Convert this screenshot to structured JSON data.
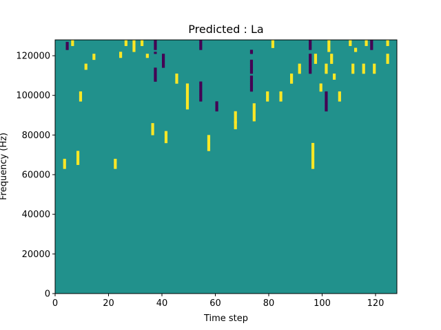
{
  "chart_data": {
    "type": "heatmap",
    "title": "Predicted : La",
    "xlabel": "Time step",
    "ylabel": "Frequency (Hz)",
    "xlim": [
      0,
      128
    ],
    "ylim": [
      0,
      128000
    ],
    "xticks": [
      0,
      20,
      40,
      60,
      80,
      100,
      120
    ],
    "yticks": [
      0,
      20000,
      40000,
      60000,
      80000,
      100000,
      120000
    ],
    "xtick_labels": [
      "0",
      "20",
      "40",
      "60",
      "80",
      "100",
      "120"
    ],
    "ytick_labels": [
      "0",
      "20000",
      "40000",
      "60000",
      "80000",
      "100000",
      "120000"
    ],
    "n_time_steps": 128,
    "n_freq_bins": 128,
    "colormap": "viridis",
    "grid": false,
    "value_levels": [
      -1,
      0,
      1
    ],
    "level_colors": {
      "-1": "#440154",
      "0": "#21918c",
      "1": "#fde725"
    },
    "background_level": 0,
    "cells_high": [
      [
        6,
        127
      ],
      [
        26,
        127
      ],
      [
        29,
        127
      ],
      [
        32,
        127
      ],
      [
        81,
        127
      ],
      [
        102,
        127
      ],
      [
        110,
        127
      ],
      [
        116,
        127
      ],
      [
        124,
        127
      ],
      [
        6,
        126
      ],
      [
        26,
        126
      ],
      [
        29,
        126
      ],
      [
        32,
        126
      ],
      [
        81,
        126
      ],
      [
        102,
        126
      ],
      [
        110,
        126
      ],
      [
        116,
        126
      ],
      [
        124,
        126
      ],
      [
        6,
        125
      ],
      [
        26,
        125
      ],
      [
        29,
        125
      ],
      [
        32,
        125
      ],
      [
        81,
        125
      ],
      [
        102,
        125
      ],
      [
        110,
        125
      ],
      [
        116,
        125
      ],
      [
        124,
        125
      ],
      [
        29,
        124
      ],
      [
        81,
        124
      ],
      [
        102,
        124
      ],
      [
        29,
        123
      ],
      [
        102,
        123
      ],
      [
        112,
        123
      ],
      [
        29,
        122
      ],
      [
        102,
        122
      ],
      [
        112,
        122
      ],
      [
        24,
        121
      ],
      [
        14,
        120
      ],
      [
        24,
        120
      ],
      [
        34,
        120
      ],
      [
        97,
        120
      ],
      [
        103,
        120
      ],
      [
        124,
        120
      ],
      [
        14,
        119
      ],
      [
        24,
        119
      ],
      [
        34,
        119
      ],
      [
        97,
        119
      ],
      [
        103,
        119
      ],
      [
        124,
        119
      ],
      [
        14,
        118
      ],
      [
        97,
        118
      ],
      [
        103,
        118
      ],
      [
        124,
        118
      ],
      [
        97,
        117
      ],
      [
        103,
        117
      ],
      [
        124,
        117
      ],
      [
        97,
        116
      ],
      [
        103,
        116
      ],
      [
        124,
        116
      ],
      [
        11,
        115
      ],
      [
        91,
        115
      ],
      [
        101,
        115
      ],
      [
        111,
        115
      ],
      [
        115,
        115
      ],
      [
        119,
        115
      ],
      [
        11,
        114
      ],
      [
        91,
        114
      ],
      [
        101,
        114
      ],
      [
        111,
        114
      ],
      [
        115,
        114
      ],
      [
        119,
        114
      ],
      [
        11,
        113
      ],
      [
        91,
        113
      ],
      [
        101,
        113
      ],
      [
        111,
        113
      ],
      [
        115,
        113
      ],
      [
        119,
        113
      ],
      [
        91,
        112
      ],
      [
        101,
        112
      ],
      [
        111,
        112
      ],
      [
        115,
        112
      ],
      [
        119,
        112
      ],
      [
        91,
        111
      ],
      [
        101,
        111
      ],
      [
        111,
        111
      ],
      [
        115,
        111
      ],
      [
        119,
        111
      ],
      [
        45,
        110
      ],
      [
        88,
        110
      ],
      [
        104,
        110
      ],
      [
        45,
        109
      ],
      [
        88,
        109
      ],
      [
        104,
        109
      ],
      [
        45,
        108
      ],
      [
        88,
        108
      ],
      [
        104,
        108
      ],
      [
        45,
        107
      ],
      [
        88,
        107
      ],
      [
        45,
        106
      ],
      [
        88,
        106
      ],
      [
        49,
        105
      ],
      [
        99,
        105
      ],
      [
        49,
        104
      ],
      [
        99,
        104
      ],
      [
        49,
        103
      ],
      [
        99,
        103
      ],
      [
        49,
        102
      ],
      [
        99,
        102
      ],
      [
        9,
        101
      ],
      [
        49,
        101
      ],
      [
        79,
        101
      ],
      [
        84,
        101
      ],
      [
        106,
        101
      ],
      [
        9,
        100
      ],
      [
        49,
        100
      ],
      [
        79,
        100
      ],
      [
        84,
        100
      ],
      [
        106,
        100
      ],
      [
        9,
        99
      ],
      [
        49,
        99
      ],
      [
        79,
        99
      ],
      [
        84,
        99
      ],
      [
        106,
        99
      ],
      [
        9,
        98
      ],
      [
        49,
        98
      ],
      [
        79,
        98
      ],
      [
        84,
        98
      ],
      [
        106,
        98
      ],
      [
        9,
        97
      ],
      [
        49,
        97
      ],
      [
        79,
        97
      ],
      [
        84,
        97
      ],
      [
        106,
        97
      ],
      [
        49,
        96
      ],
      [
        74,
        95
      ],
      [
        49,
        95
      ],
      [
        74,
        94
      ],
      [
        49,
        94
      ],
      [
        74,
        93
      ],
      [
        49,
        93
      ],
      [
        74,
        92
      ],
      [
        67,
        91
      ],
      [
        74,
        91
      ],
      [
        67,
        90
      ],
      [
        74,
        90
      ],
      [
        67,
        89
      ],
      [
        74,
        89
      ],
      [
        67,
        88
      ],
      [
        74,
        88
      ],
      [
        67,
        87
      ],
      [
        74,
        87
      ],
      [
        67,
        86
      ],
      [
        36,
        85
      ],
      [
        67,
        86
      ],
      [
        67,
        85
      ],
      [
        36,
        84
      ],
      [
        67,
        84
      ],
      [
        36,
        83
      ],
      [
        67,
        83
      ],
      [
        36,
        82
      ],
      [
        41,
        81
      ],
      [
        36,
        81
      ],
      [
        41,
        80
      ],
      [
        36,
        80
      ],
      [
        41,
        79
      ],
      [
        57,
        79
      ],
      [
        41,
        78
      ],
      [
        57,
        78
      ],
      [
        41,
        77
      ],
      [
        57,
        77
      ],
      [
        41,
        76
      ],
      [
        57,
        76
      ],
      [
        57,
        75
      ],
      [
        96,
        75
      ],
      [
        57,
        74
      ],
      [
        96,
        74
      ],
      [
        57,
        73
      ],
      [
        96,
        73
      ],
      [
        57,
        72
      ],
      [
        96,
        72
      ],
      [
        8,
        71
      ],
      [
        96,
        71
      ],
      [
        8,
        70
      ],
      [
        96,
        70
      ],
      [
        8,
        69
      ],
      [
        96,
        69
      ],
      [
        8,
        68
      ],
      [
        96,
        68
      ],
      [
        3,
        67
      ],
      [
        8,
        67
      ],
      [
        22,
        67
      ],
      [
        96,
        67
      ],
      [
        3,
        66
      ],
      [
        8,
        66
      ],
      [
        22,
        66
      ],
      [
        96,
        66
      ],
      [
        3,
        65
      ],
      [
        8,
        65
      ],
      [
        22,
        65
      ],
      [
        96,
        65
      ],
      [
        3,
        64
      ],
      [
        22,
        64
      ],
      [
        96,
        64
      ],
      [
        3,
        63
      ],
      [
        22,
        63
      ],
      [
        96,
        63
      ]
    ],
    "cells_low": [
      [
        95,
        127
      ],
      [
        37,
        127
      ],
      [
        118,
        127
      ],
      [
        54,
        127
      ],
      [
        4,
        126
      ],
      [
        95,
        126
      ],
      [
        37,
        126
      ],
      [
        118,
        126
      ],
      [
        54,
        126
      ],
      [
        4,
        125
      ],
      [
        95,
        125
      ],
      [
        37,
        125
      ],
      [
        118,
        125
      ],
      [
        54,
        125
      ],
      [
        4,
        124
      ],
      [
        95,
        124
      ],
      [
        37,
        124
      ],
      [
        118,
        124
      ],
      [
        54,
        124
      ],
      [
        4,
        123
      ],
      [
        95,
        123
      ],
      [
        37,
        123
      ],
      [
        118,
        123
      ],
      [
        54,
        123
      ],
      [
        73,
        122
      ],
      [
        73,
        121
      ],
      [
        37,
        121
      ],
      [
        40,
        120
      ],
      [
        95,
        120
      ],
      [
        40,
        119
      ],
      [
        95,
        119
      ],
      [
        40,
        118
      ],
      [
        95,
        118
      ],
      [
        73,
        117
      ],
      [
        40,
        117
      ],
      [
        95,
        117
      ],
      [
        73,
        116
      ],
      [
        40,
        116
      ],
      [
        95,
        116
      ],
      [
        73,
        115
      ],
      [
        40,
        115
      ],
      [
        95,
        115
      ],
      [
        73,
        114
      ],
      [
        40,
        114
      ],
      [
        95,
        114
      ],
      [
        37,
        113
      ],
      [
        73,
        113
      ],
      [
        95,
        113
      ],
      [
        37,
        112
      ],
      [
        73,
        112
      ],
      [
        95,
        112
      ],
      [
        37,
        111
      ],
      [
        73,
        111
      ],
      [
        95,
        111
      ],
      [
        37,
        110
      ],
      [
        37,
        109
      ],
      [
        73,
        109
      ],
      [
        37,
        108
      ],
      [
        73,
        108
      ],
      [
        37,
        107
      ],
      [
        73,
        107
      ],
      [
        73,
        106
      ],
      [
        54,
        106
      ],
      [
        73,
        105
      ],
      [
        54,
        105
      ],
      [
        73,
        104
      ],
      [
        54,
        104
      ],
      [
        73,
        103
      ],
      [
        54,
        103
      ],
      [
        73,
        102
      ],
      [
        54,
        102
      ],
      [
        101,
        101
      ],
      [
        54,
        101
      ],
      [
        101,
        100
      ],
      [
        54,
        100
      ],
      [
        101,
        99
      ],
      [
        54,
        99
      ],
      [
        101,
        98
      ],
      [
        54,
        98
      ],
      [
        101,
        97
      ],
      [
        54,
        97
      ],
      [
        101,
        96
      ],
      [
        60,
        96
      ],
      [
        101,
        95
      ],
      [
        60,
        95
      ],
      [
        101,
        94
      ],
      [
        60,
        94
      ],
      [
        101,
        93
      ],
      [
        60,
        93
      ],
      [
        101,
        92
      ],
      [
        60,
        92
      ]
    ]
  }
}
